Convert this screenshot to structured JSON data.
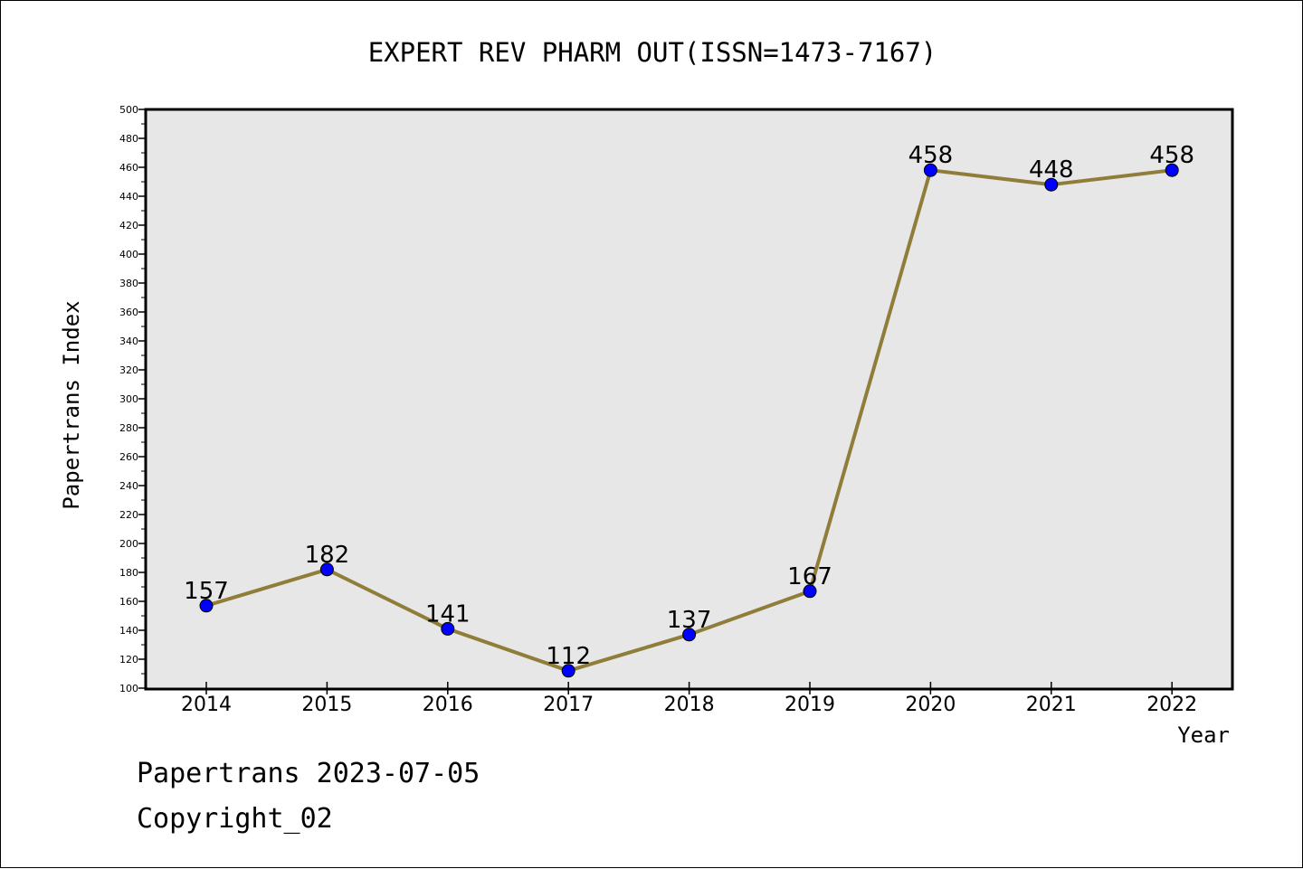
{
  "chart_data": {
    "type": "line",
    "title": "EXPERT REV PHARM OUT(ISSN=1473-7167)",
    "xlabel": "Year",
    "ylabel": "Papertrans Index",
    "categories": [
      "2014",
      "2015",
      "2016",
      "2017",
      "2018",
      "2019",
      "2020",
      "2021",
      "2022"
    ],
    "series": [
      {
        "values": [
          157,
          182,
          141,
          112,
          137,
          167,
          458,
          448,
          458
        ]
      }
    ],
    "ylim": [
      100,
      500
    ],
    "ytick_step": 20,
    "grid": false,
    "line_color": "#8f7d3a",
    "marker_color": "#0000ff",
    "plot_background": "#e7e7e7"
  },
  "footer": {
    "line1": "Papertrans 2023-07-05",
    "line2": "Copyright_02"
  }
}
